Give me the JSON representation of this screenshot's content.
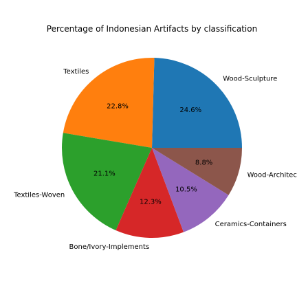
{
  "chart_data": {
    "type": "pie",
    "title": "Percentage of Indonesian Artifacts by classification",
    "startangle": 0,
    "direction": "counterclockwise",
    "slices": [
      {
        "label": "Wood-Sculpture",
        "pct_label": "24.6%",
        "value": 24.6,
        "color": "#1f77b4"
      },
      {
        "label": "Textiles",
        "pct_label": "22.8%",
        "value": 22.8,
        "color": "#ff7f0e"
      },
      {
        "label": "Textiles-Woven",
        "pct_label": "21.1%",
        "value": 21.1,
        "color": "#2ca02c"
      },
      {
        "label": "Bone/Ivory-Implements",
        "pct_label": "12.3%",
        "value": 12.3,
        "color": "#d62728"
      },
      {
        "label": "Ceramics-Containers",
        "pct_label": "10.5%",
        "value": 10.5,
        "color": "#9467bd"
      },
      {
        "label": "Wood-Architec",
        "pct_label": "8.8%",
        "value": 8.8,
        "color": "#8c564b"
      }
    ]
  }
}
